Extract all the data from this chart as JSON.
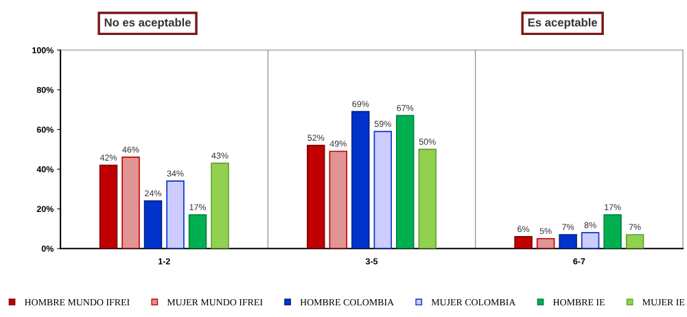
{
  "chart_data": {
    "type": "bar",
    "categories": [
      "1-2",
      "3-5",
      "6-7"
    ],
    "series": [
      {
        "name": "HOMBRE MUNDO IFREI",
        "color": "#c00000",
        "values": [
          42,
          52,
          6
        ]
      },
      {
        "name": "MUJER MUNDO IFREI",
        "color": "#e09494",
        "values": [
          46,
          49,
          5
        ]
      },
      {
        "name": "HOMBRE COLOMBIA",
        "color": "#0033cc",
        "values": [
          24,
          69,
          7
        ]
      },
      {
        "name": "MUJER COLOMBIA",
        "color": "#ccccff",
        "values": [
          34,
          59,
          8
        ]
      },
      {
        "name": "HOMBRE IE",
        "color": "#00b050",
        "values": [
          17,
          67,
          17
        ]
      },
      {
        "name": "MUJER IE",
        "color": "#92d050",
        "values": [
          43,
          50,
          7
        ]
      }
    ],
    "ylim": [
      0,
      100
    ],
    "yticks": [
      {
        "value": 0,
        "label": "0%"
      },
      {
        "value": 20,
        "label": "20%"
      },
      {
        "value": 40,
        "label": "40%"
      },
      {
        "value": 60,
        "label": "60%"
      },
      {
        "value": 80,
        "label": "80%"
      },
      {
        "value": 100,
        "label": "100%"
      }
    ],
    "value_labels": [
      [
        "42%",
        "52%",
        "6%"
      ],
      [
        "46%",
        "49%",
        "5%"
      ],
      [
        "24%",
        "69%",
        "7%"
      ],
      [
        "34%",
        "59%",
        "8%"
      ],
      [
        "17%",
        "67%",
        "17%"
      ],
      [
        "43%",
        "50%",
        "7%"
      ]
    ],
    "annotations": [
      "No es aceptable",
      "Es aceptable"
    ],
    "legend": "bottom",
    "grid": false
  }
}
